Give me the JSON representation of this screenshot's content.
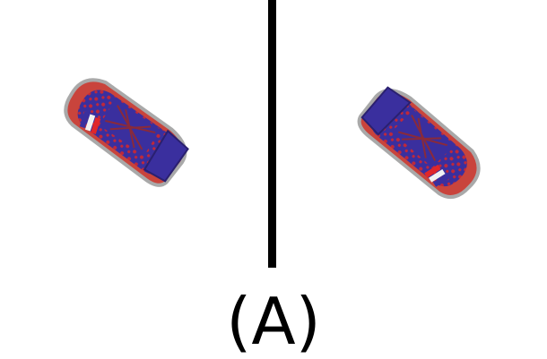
{
  "caption": "(A)",
  "colors": {
    "divider": "#000000",
    "shoe_blue": "#3a2f9e",
    "shoe_red": "#b8302c",
    "sole": "#c9443c",
    "sole_edge": "#a9a9a9",
    "stripe_white": "#f2f2f2",
    "stripe_red": "#e0262a",
    "lace": "#8a2a3a"
  },
  "images": [
    {
      "name": "left-shoe-image",
      "icon": "sneaker-icon"
    },
    {
      "name": "right-shoe-image",
      "icon": "sneaker-icon-mirrored"
    }
  ]
}
